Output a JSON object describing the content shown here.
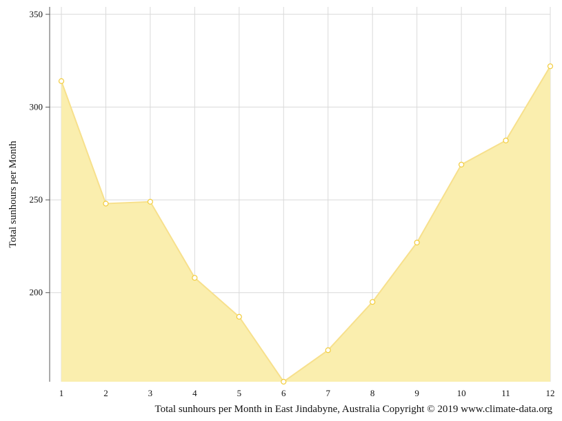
{
  "chart_data": {
    "type": "area",
    "x": [
      1,
      2,
      3,
      4,
      5,
      6,
      7,
      8,
      9,
      10,
      11,
      12
    ],
    "series": [
      {
        "values": [
          314,
          248,
          249,
          208,
          187,
          152,
          169,
          195,
          227,
          269,
          282,
          322
        ]
      }
    ],
    "x_ticks": [
      "1",
      "2",
      "3",
      "4",
      "5",
      "6",
      "7",
      "8",
      "9",
      "10",
      "11",
      "12"
    ],
    "y_ticks": [
      "200",
      "250",
      "300",
      "350"
    ],
    "ylabel": "Total sunhours per Month",
    "caption": "Total sunhours per Month in East Jindabyne, Australia Copyright © 2019 www.climate-data.org",
    "ylim": [
      152,
      354
    ],
    "grid": true,
    "colors": {
      "fill": "#faeeae",
      "line": "#f7e08c",
      "marker": "#f2cc3c"
    }
  }
}
